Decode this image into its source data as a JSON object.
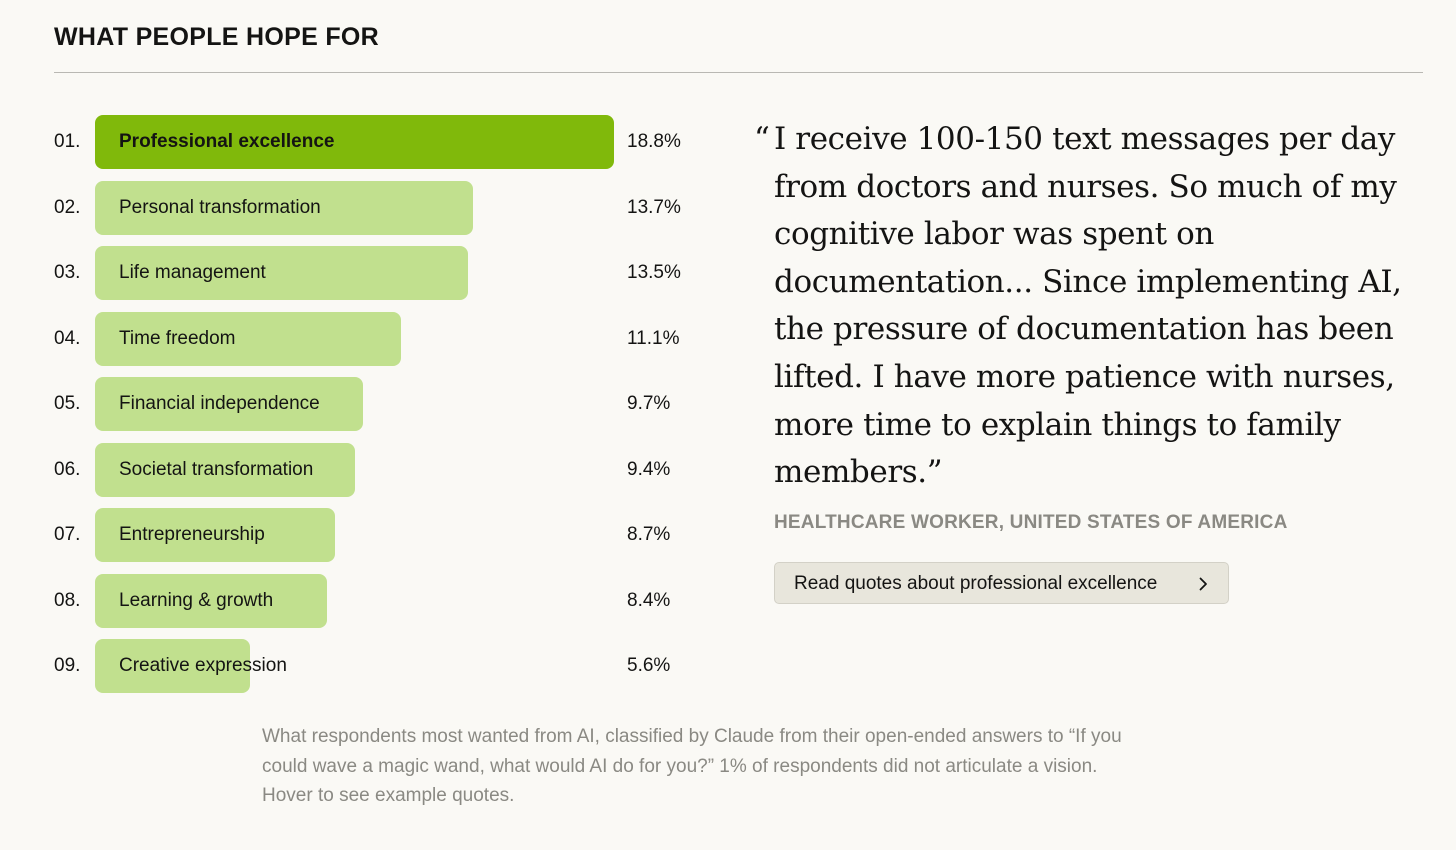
{
  "header": {
    "title": "WHAT PEOPLE HOPE FOR"
  },
  "chart_data": {
    "type": "bar",
    "orientation": "horizontal",
    "title": "WHAT PEOPLE HOPE FOR",
    "ranks": [
      "01.",
      "02.",
      "03.",
      "04.",
      "05.",
      "06.",
      "07.",
      "08.",
      "09."
    ],
    "categories": [
      "Professional excellence",
      "Personal transformation",
      "Life management",
      "Time freedom",
      "Financial independence",
      "Societal transformation",
      "Entrepreneurship",
      "Learning & growth",
      "Creative expression"
    ],
    "values": [
      18.8,
      13.7,
      13.5,
      11.1,
      9.7,
      9.4,
      8.7,
      8.4,
      5.6
    ],
    "value_labels": [
      "18.8%",
      "13.7%",
      "13.5%",
      "11.1%",
      "9.7%",
      "9.4%",
      "8.7%",
      "8.4%",
      "5.6%"
    ],
    "highlighted_index": 0,
    "colors": {
      "highlight": "#80b90b",
      "default": "#c1e08e"
    },
    "grid": false,
    "legend": "none"
  },
  "quote": {
    "open_mark": "“",
    "lines": [
      "I receive 100-150 text messages per day",
      "from doctors and nurses. So much of my",
      "cognitive labor was spent on",
      "documentation... Since implementing AI,",
      "the pressure of documentation has been",
      "lifted. I have more patience with nurses,",
      "more time to explain things to family",
      "members.”"
    ],
    "attribution": "HEALTHCARE WORKER, UNITED STATES OF AMERICA"
  },
  "read_button": {
    "label": "Read quotes about professional excellence",
    "icon": "chevron-right-icon"
  },
  "caption": {
    "lines": [
      "What respondents most wanted from AI, classified by Claude from their open-ended answers to “If you",
      "could wave a magic wand, what would AI do for you?” 1% of respondents did not articulate a vision.",
      "Hover to see example quotes."
    ]
  },
  "colors": {
    "background": "#faf9f5",
    "text": "#141413",
    "muted": "#8a8983",
    "button_bg": "#e8e6dc"
  }
}
